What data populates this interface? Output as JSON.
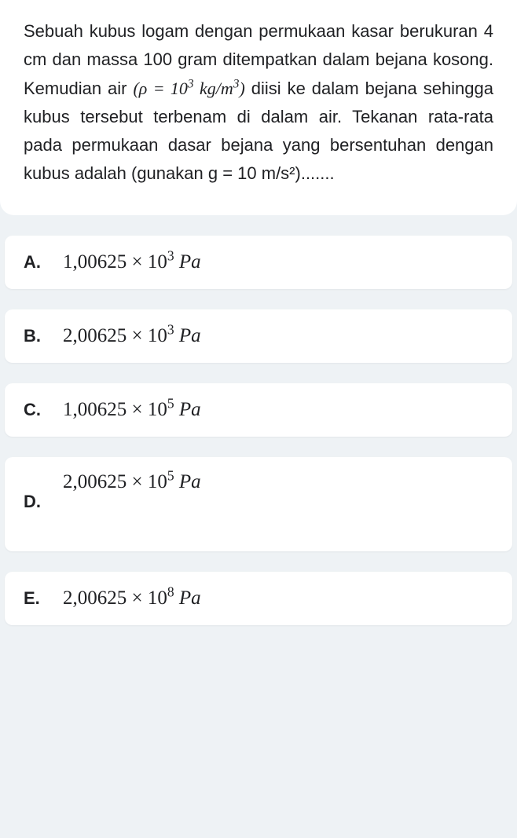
{
  "question": {
    "text_part1": "Sebuah kubus logam dengan permukaan kasar berukuran 4 cm dan massa 100 gram ditempatkan dalam bejana kosong. Kemudian air ",
    "formula_lparen": "(",
    "formula_rho": "ρ",
    "formula_eq": " = 10",
    "formula_exp1": "3",
    "formula_unit": " kg/m",
    "formula_exp2": "3",
    "formula_rparen": ")",
    "text_part2": " diisi ke dalam bejana sehingga kubus tersebut terbenam di dalam air. Tekanan rata-rata pada permukaan dasar bejana yang bersentuhan dengan kubus adalah (gunakan g = 10 m/s²)......."
  },
  "options": [
    {
      "label": "A.",
      "value": "1,00625 × 10",
      "exponent": "3",
      "unit": " Pa",
      "tall": false
    },
    {
      "label": "B.",
      "value": "2,00625 × 10",
      "exponent": "3",
      "unit": " Pa",
      "tall": false
    },
    {
      "label": "C.",
      "value": "1,00625 × 10",
      "exponent": "5",
      "unit": " Pa",
      "tall": false
    },
    {
      "label": "D.",
      "value": "2,00625 × 10",
      "exponent": "5",
      "unit": " Pa",
      "tall": true
    },
    {
      "label": "E.",
      "value": "2,00625 × 10",
      "exponent": "8",
      "unit": " Pa",
      "tall": false
    }
  ],
  "colors": {
    "background": "#eef2f5",
    "card": "#ffffff",
    "text": "#202124"
  }
}
